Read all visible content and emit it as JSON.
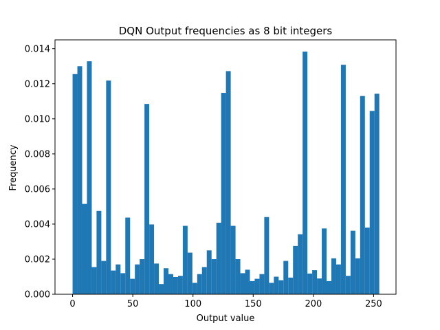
{
  "chart_data": {
    "type": "bar",
    "title": "DQN Output frequencies as 8 bit integers",
    "xlabel": "Output value",
    "ylabel": "Frequency",
    "xlim": [
      -14.6,
      268.6
    ],
    "ylim": [
      0,
      0.0145
    ],
    "bin_start": 0,
    "bin_width": 3.98,
    "bar_color": "#1f77b4",
    "grid": false,
    "x_ticks": [
      0,
      50,
      100,
      150,
      200,
      250
    ],
    "x_tick_labels": [
      "0",
      "50",
      "100",
      "150",
      "200",
      "250"
    ],
    "y_ticks": [
      0,
      0.002,
      0.004,
      0.006,
      0.008,
      0.01,
      0.012,
      0.014
    ],
    "y_tick_labels": [
      "0.000",
      "0.002",
      "0.004",
      "0.006",
      "0.008",
      "0.010",
      "0.012",
      "0.014"
    ],
    "values": [
      0.01255,
      0.013,
      0.00515,
      0.01328,
      0.00155,
      0.00475,
      0.0019,
      0.01218,
      0.00135,
      0.0017,
      0.0012,
      0.00437,
      0.00088,
      0.0017,
      0.002,
      0.01085,
      0.00398,
      0.00175,
      0.00058,
      0.00148,
      0.00115,
      0.00098,
      0.00105,
      0.0039,
      0.00237,
      0.00065,
      0.00115,
      0.00155,
      0.0025,
      0.002,
      0.00408,
      0.01148,
      0.01272,
      0.0039,
      0.002,
      0.0012,
      0.0014,
      0.00075,
      0.00088,
      0.00115,
      0.0044,
      0.00065,
      0.001,
      0.0008,
      0.0019,
      0.00095,
      0.00275,
      0.00342,
      0.01383,
      0.00118,
      0.00137,
      0.0009,
      0.00375,
      0.00075,
      0.00205,
      0.0017,
      0.01308,
      0.00105,
      0.00362,
      0.00205,
      0.0113,
      0.0038,
      0.01045,
      0.01143
    ]
  }
}
